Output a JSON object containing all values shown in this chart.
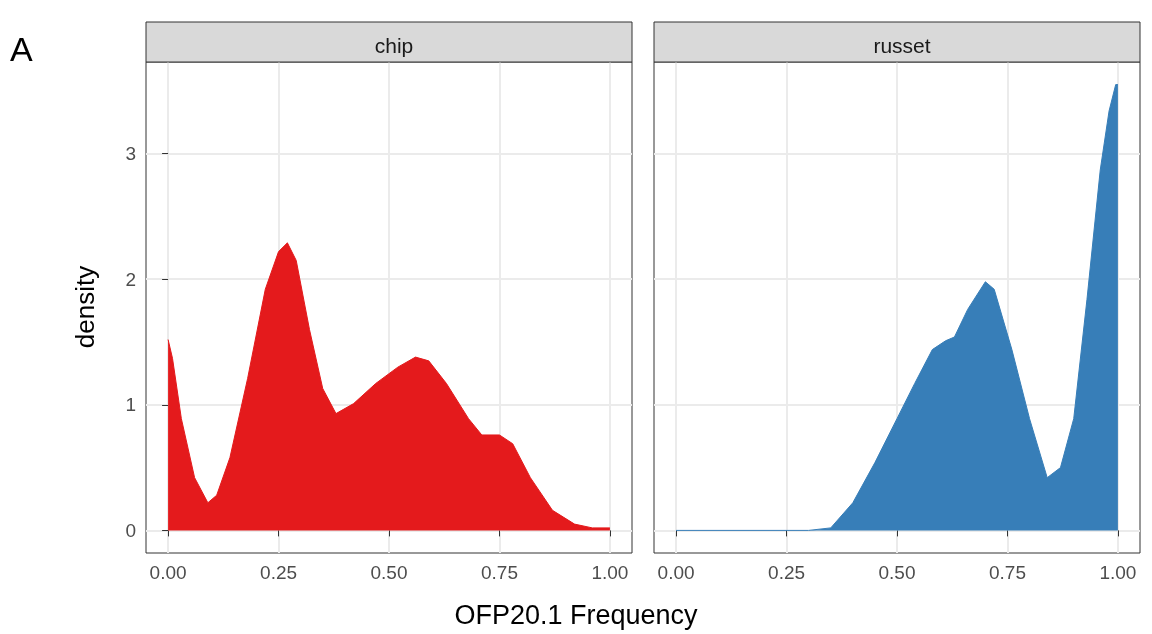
{
  "chart_data": [
    {
      "type": "area",
      "title": "chip",
      "xlabel": "OFP20.1 Frequency",
      "ylabel": "density",
      "annotations": [
        "A"
      ],
      "color": "#e41a1c",
      "grid": true,
      "x": [
        0,
        0.01,
        0.03,
        0.06,
        0.09,
        0.11,
        0.14,
        0.18,
        0.22,
        0.25,
        0.27,
        0.29,
        0.32,
        0.35,
        0.38,
        0.42,
        0.47,
        0.52,
        0.56,
        0.59,
        0.63,
        0.68,
        0.71,
        0.75,
        0.78,
        0.82,
        0.87,
        0.92,
        0.96,
        1
      ],
      "values": [
        1.52,
        1.37,
        0.89,
        0.42,
        0.22,
        0.28,
        0.58,
        1.21,
        1.92,
        2.22,
        2.29,
        2.15,
        1.6,
        1.13,
        0.93,
        1.01,
        1.17,
        1.3,
        1.38,
        1.35,
        1.17,
        0.89,
        0.76,
        0.76,
        0.69,
        0.42,
        0.16,
        0.05,
        0.02,
        0.02
      ],
      "xlim": [
        -0.05,
        1.05
      ],
      "xticks": [
        {
          "value": 0,
          "label": "0.00"
        },
        {
          "value": 0.25,
          "label": "0.25"
        },
        {
          "value": 0.5,
          "label": "0.50"
        },
        {
          "value": 0.75,
          "label": "0.75"
        },
        {
          "value": 1,
          "label": "1.00"
        }
      ],
      "ylim": [
        -0.18,
        3.73
      ],
      "yticks": [
        0,
        1,
        2,
        3
      ]
    },
    {
      "type": "area",
      "title": "russet",
      "color": "#377eb8",
      "grid": true,
      "tick_labels": "x",
      "x": [
        0,
        0.3,
        0.35,
        0.4,
        0.45,
        0.5,
        0.54,
        0.58,
        0.61,
        0.63,
        0.66,
        0.7,
        0.72,
        0.76,
        0.8,
        0.84,
        0.87,
        0.9,
        0.93,
        0.96,
        0.98,
        0.995,
        1
      ],
      "values": [
        0,
        0,
        0.02,
        0.22,
        0.54,
        0.89,
        1.17,
        1.44,
        1.51,
        1.54,
        1.76,
        1.98,
        1.92,
        1.44,
        0.89,
        0.42,
        0.5,
        0.89,
        1.84,
        2.87,
        3.34,
        3.55,
        3.55
      ],
      "xlim": [
        -0.05,
        1.05
      ],
      "xticks": [
        {
          "value": 0,
          "label": "0.00"
        },
        {
          "value": 0.25,
          "label": "0.25"
        },
        {
          "value": 0.5,
          "label": "0.50"
        },
        {
          "value": 0.75,
          "label": "0.75"
        },
        {
          "value": 1,
          "label": "1.00"
        }
      ],
      "ylim": [
        -0.18,
        3.73
      ],
      "yticks": [
        0,
        1,
        2,
        3
      ]
    }
  ]
}
